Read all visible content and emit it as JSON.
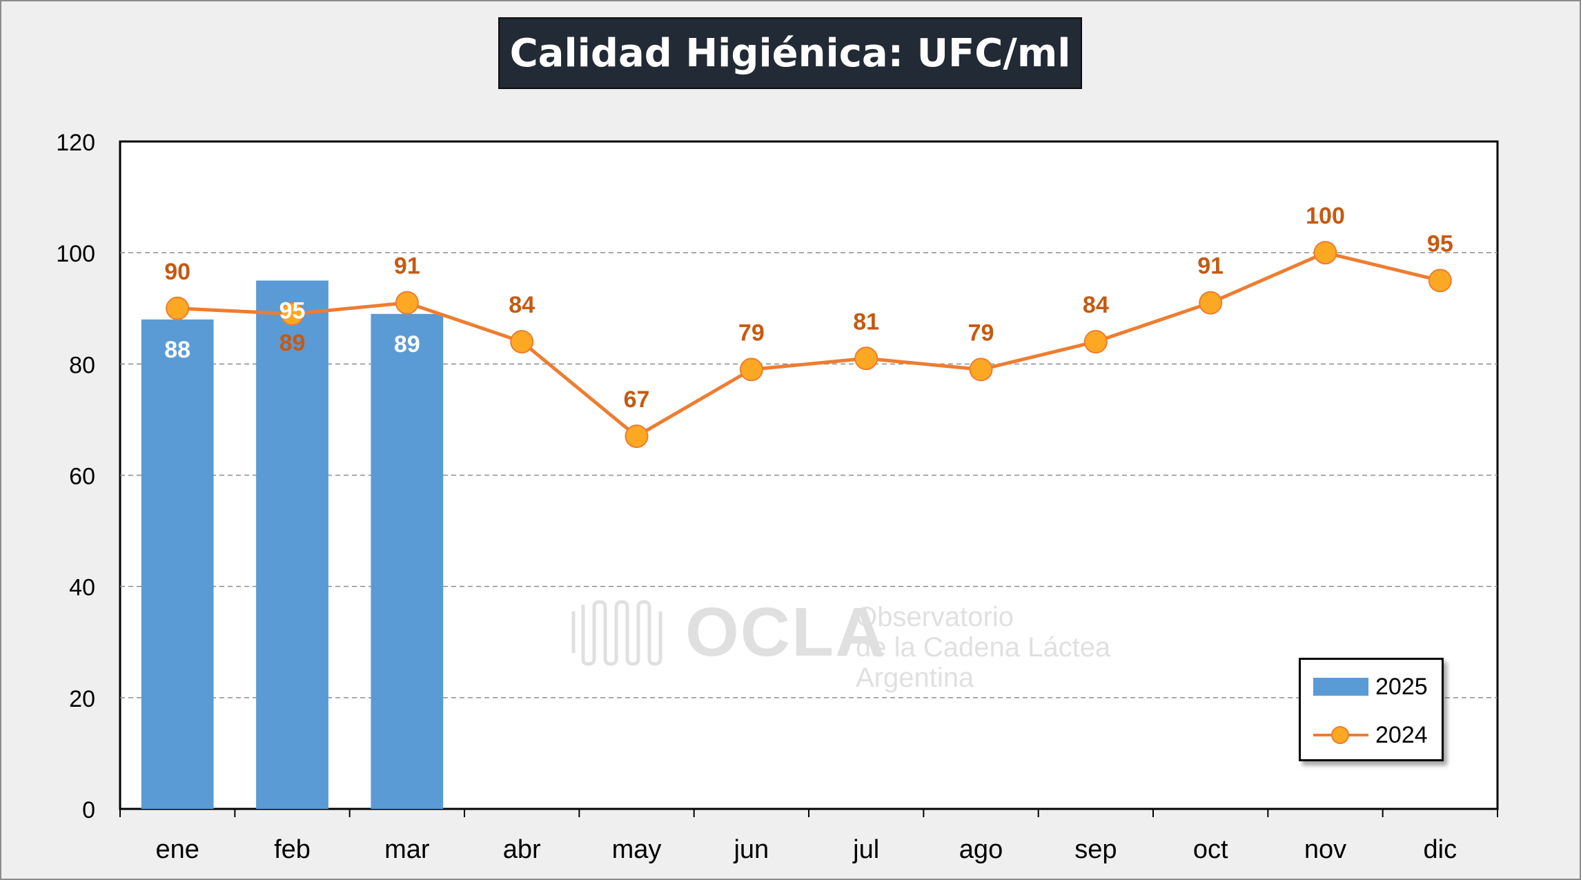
{
  "colors": {
    "bar": "#5b9bd5",
    "line": "#ed7d31",
    "marker_fill": "#fca823",
    "line_label": "#c55a11",
    "bar_label": "#ffffff",
    "title_bg": "#222a35",
    "background": "#efefef",
    "plot_bg": "#ffffff"
  },
  "watermark": {
    "acronym": "OCLA",
    "line1": "Observatorio",
    "line2": "de la Cadena Láctea",
    "line3": "Argentina"
  },
  "chart_data": {
    "type": "bar",
    "title": "Calidad Higiénica: UFC/ml",
    "xlabel": "",
    "ylabel": "",
    "categories": [
      "ene",
      "feb",
      "mar",
      "abr",
      "may",
      "jun",
      "jul",
      "ago",
      "sep",
      "oct",
      "nov",
      "dic"
    ],
    "ylim": [
      0,
      120
    ],
    "yticks": [
      0,
      20,
      40,
      60,
      80,
      100,
      120
    ],
    "grid": "horizontal dashed",
    "legend_position": "bottom-right",
    "series": [
      {
        "name": "2025",
        "type": "bar",
        "values": [
          88,
          95,
          89,
          null,
          null,
          null,
          null,
          null,
          null,
          null,
          null,
          null
        ],
        "labels": [
          "88",
          "95",
          "89"
        ]
      },
      {
        "name": "2024",
        "type": "line",
        "values": [
          90,
          89,
          91,
          84,
          67,
          79,
          81,
          79,
          84,
          91,
          100,
          95
        ],
        "labels": [
          "90",
          "89",
          "91",
          "84",
          "67",
          "79",
          "81",
          "79",
          "84",
          "91",
          "100",
          "95"
        ]
      }
    ]
  }
}
